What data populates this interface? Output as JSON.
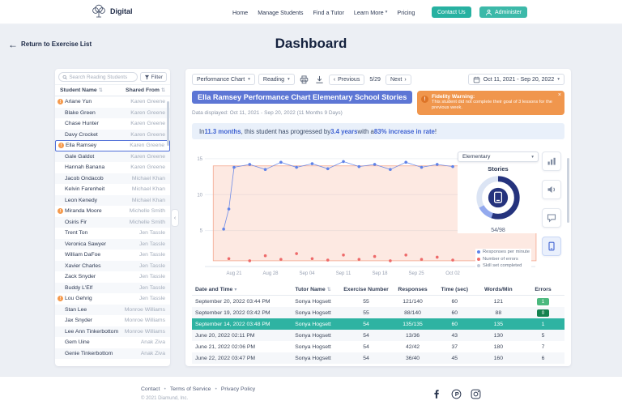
{
  "brand": {
    "name": "Digital"
  },
  "icons": {
    "back_arrow": "←",
    "chevron_down": "▾",
    "chevron_left": "‹",
    "chevron_right": "›",
    "sort": "⇅",
    "close": "×",
    "warning": "!",
    "bullet": "•"
  },
  "colors": {
    "teal": "#27b1a1",
    "accent_blue": "#3f62d2",
    "banner_blue": "#5d76d5",
    "warning_orange": "#f0964d",
    "highlight_teal": "#2eb3a2",
    "badge_green": "#4cb97e",
    "badge_dark_green": "#13814f",
    "series_blue": "#5f82e8",
    "series_red": "#ee6a6a",
    "band_pink": "#f8a68c"
  },
  "nav": {
    "items": [
      "Home",
      "Manage Students",
      "Find a Tutor",
      "Learn More",
      "Pricing"
    ],
    "dropdown_item": "Learn More",
    "contact_button": "Contact Us",
    "admin_button": "Administer"
  },
  "page": {
    "back_link": "Return to Exercise List",
    "title": "Dashboard"
  },
  "sidebar": {
    "search_placeholder": "Search Reading Students",
    "filter_label": "Filter",
    "columns": [
      "Student Name",
      "Shared From"
    ],
    "students": [
      {
        "name": "Arlane Yun",
        "shared_from": "Karen Greene",
        "warning": true,
        "selected": false
      },
      {
        "name": "Blake Green",
        "shared_from": "Karen Greene",
        "warning": false,
        "selected": false
      },
      {
        "name": "Chase Hunter",
        "shared_from": "Karen Greene",
        "warning": false,
        "selected": false
      },
      {
        "name": "Davy Crocket",
        "shared_from": "Karen Greene",
        "warning": false,
        "selected": false
      },
      {
        "name": "Ella Ramsey",
        "shared_from": "Karen Greene",
        "warning": true,
        "selected": true
      },
      {
        "name": "Gale Galdot",
        "shared_from": "Karen Greene",
        "warning": false,
        "selected": false
      },
      {
        "name": "Hannah Banana",
        "shared_from": "Karen Greene",
        "warning": false,
        "selected": false
      },
      {
        "name": "Jacob Ondacob",
        "shared_from": "Michael Khan",
        "warning": false,
        "selected": false
      },
      {
        "name": "Kelvin Farenheit",
        "shared_from": "Michael Khan",
        "warning": false,
        "selected": false
      },
      {
        "name": "Leon Kenedy",
        "shared_from": "Michael Khan",
        "warning": false,
        "selected": false
      },
      {
        "name": "Miranda Moore",
        "shared_from": "Michelle Smith",
        "warning": true,
        "selected": false
      },
      {
        "name": "Osiris Fir",
        "shared_from": "Michelle Smith",
        "warning": false,
        "selected": false
      },
      {
        "name": "Trent Ton",
        "shared_from": "Jen Tassle",
        "warning": false,
        "selected": false
      },
      {
        "name": "Veronica Sawyer",
        "shared_from": "Jen Tassle",
        "warning": false,
        "selected": false
      },
      {
        "name": "William DaFoe",
        "shared_from": "Jen Tassle",
        "warning": false,
        "selected": false
      },
      {
        "name": "Xavier Charles",
        "shared_from": "Jen Tassle",
        "warning": false,
        "selected": false
      },
      {
        "name": "Zack Snyder",
        "shared_from": "Jen Tassle",
        "warning": false,
        "selected": false
      },
      {
        "name": "Buddy L'Elf",
        "shared_from": "Jen Tassle",
        "warning": false,
        "selected": false
      },
      {
        "name": "Lou Gehrig",
        "shared_from": "Jen Tassle",
        "warning": true,
        "selected": false
      },
      {
        "name": "Stan Lee",
        "shared_from": "Monroe Williams",
        "warning": false,
        "selected": false
      },
      {
        "name": "Jax Snyder",
        "shared_from": "Monroe Williams",
        "warning": false,
        "selected": false
      },
      {
        "name": "Lee Ann Tinkerbottom",
        "shared_from": "Monroe Williams",
        "warning": false,
        "selected": false
      },
      {
        "name": "Gem Uine",
        "shared_from": "Anak Ziva",
        "warning": false,
        "selected": false
      },
      {
        "name": "Genie Tinkerbottom",
        "shared_from": "Anak Ziva",
        "warning": false,
        "selected": false
      }
    ]
  },
  "toolbar": {
    "chart_select": "Performance Chart",
    "subject_select": "Reading",
    "previous_label": "Previous",
    "next_label": "Next",
    "page_indicator": "5/29",
    "date_range": "Oct 11, 2021 - Sep 20, 2022"
  },
  "report": {
    "heading": "Ella Ramsey Performance Chart Elementary School Stories",
    "data_displayed": "Data displayed: Oct 11, 2021 - Sep 20, 2022 (11 Months 9 Days)",
    "warning": {
      "title": "Fidelity Warning:",
      "body": "This student did not complete their goal of 3 lessons for the previous week."
    },
    "summary_segments": [
      {
        "text": "In ",
        "bold": false
      },
      {
        "text": "11.3 months",
        "bold": true
      },
      {
        "text": ", this student has progressed by ",
        "bold": false
      },
      {
        "text": "3.4 years",
        "bold": true
      },
      {
        "text": " with a ",
        "bold": false
      },
      {
        "text": "83% increase in rate",
        "bold": true
      },
      {
        "text": "!",
        "bold": false
      }
    ]
  },
  "chart_data": {
    "type": "scatter",
    "title": "Ella Ramsey Performance Chart Elementary School Stories",
    "x_tick_labels": [
      "Aug 21",
      "Aug 28",
      "Sep 04",
      "Sep 11",
      "Sep 18",
      "Sep 25",
      "Oct 02"
    ],
    "x_tick_days": [
      3,
      10,
      17,
      24,
      31,
      38,
      45
    ],
    "x_domain_days": [
      0,
      61
    ],
    "ylim": [
      0,
      16
    ],
    "yticks": [
      5,
      10,
      15
    ],
    "grid": true,
    "legend_position": "bottom-right",
    "target_band": {
      "day_start": -1,
      "day_end": 61,
      "y_low": 0.8,
      "y_high": 14.0,
      "fill": "#f8a68c",
      "opacity": 0.25,
      "stroke": "#f3a78e"
    },
    "series": [
      {
        "name": "Responses per minute",
        "color": "#5f82e8",
        "type": "line+scatter",
        "points": [
          [
            1,
            5.2
          ],
          [
            2,
            8.0
          ],
          [
            3,
            13.8
          ],
          [
            6,
            14.2
          ],
          [
            9,
            13.5
          ],
          [
            12,
            14.5
          ],
          [
            15,
            13.8
          ],
          [
            18,
            14.3
          ],
          [
            21,
            13.6
          ],
          [
            24,
            14.6
          ],
          [
            27,
            13.9
          ],
          [
            30,
            14.2
          ],
          [
            33,
            13.5
          ],
          [
            36,
            14.5
          ],
          [
            39,
            13.8
          ],
          [
            42,
            14.2
          ],
          [
            45,
            13.9
          ]
        ]
      },
      {
        "name": "Number of errors",
        "color": "#ee6a6a",
        "type": "scatter",
        "points": [
          [
            2,
            1.1
          ],
          [
            6,
            0.8
          ],
          [
            9,
            1.5
          ],
          [
            12,
            1.0
          ],
          [
            15,
            1.8
          ],
          [
            18,
            1.1
          ],
          [
            21,
            0.9
          ],
          [
            24,
            1.6
          ],
          [
            27,
            1.0
          ],
          [
            30,
            1.4
          ],
          [
            33,
            0.8
          ],
          [
            36,
            1.6
          ],
          [
            39,
            1.0
          ],
          [
            42,
            1.3
          ],
          [
            45,
            0.9
          ]
        ]
      },
      {
        "name": "Skill set completed",
        "color": "#c3cbd8",
        "type": "scatter",
        "points": []
      }
    ]
  },
  "skill_panel": {
    "level_select": "Elementary",
    "label": "Stories",
    "progress": "54/98",
    "progress_value": 54,
    "progress_total": 98,
    "donut_primary": "#25337d",
    "donut_secondary": "#93a9ee",
    "donut_track": "#dbe4f4"
  },
  "chart_tools": [
    {
      "name": "bar-chart",
      "active": false
    },
    {
      "name": "audio",
      "active": false
    },
    {
      "name": "chat",
      "active": false
    },
    {
      "name": "book",
      "active": true
    }
  ],
  "session_table": {
    "columns": [
      "Date and Time",
      "Tutor Name",
      "Exercise Number",
      "Responses",
      "Time (sec)",
      "Words/Min",
      "Errors"
    ],
    "rows": [
      {
        "date": "September 20, 2022 03:44 PM",
        "tutor": "Sonya Hogsett",
        "exercise": "55",
        "responses": "121/140",
        "time": "60",
        "words": "121",
        "errors": "1",
        "errors_style": "green",
        "highlight": false
      },
      {
        "date": "September 19, 2022 03:42 PM",
        "tutor": "Sonya Hogsett",
        "exercise": "55",
        "responses": "88/140",
        "time": "60",
        "words": "88",
        "errors": "0",
        "errors_style": "dark-green",
        "highlight": false
      },
      {
        "date": "September 14, 2022 03:48 PM",
        "tutor": "Sonya Hogsett",
        "exercise": "54",
        "responses": "135/135",
        "time": "60",
        "words": "135",
        "errors": "1",
        "errors_style": "plain",
        "highlight": true
      },
      {
        "date": "June 20, 2022 02:11 PM",
        "tutor": "Sonya Hogsett",
        "exercise": "54",
        "responses": "13/36",
        "time": "43",
        "words": "130",
        "errors": "5",
        "errors_style": "plain",
        "highlight": false
      },
      {
        "date": "June 21, 2022 02:06 PM",
        "tutor": "Sonya Hogsett",
        "exercise": "54",
        "responses": "42/42",
        "time": "37",
        "words": "180",
        "errors": "7",
        "errors_style": "plain",
        "highlight": false
      },
      {
        "date": "June 22, 2022 03:47 PM",
        "tutor": "Sonya Hogsett",
        "exercise": "54",
        "responses": "36/40",
        "time": "45",
        "words": "160",
        "errors": "6",
        "errors_style": "plain",
        "highlight": false
      }
    ]
  },
  "footer": {
    "links": [
      "Contact",
      "Terms of Service",
      "Privacy Policy"
    ],
    "copyright": "© 2021 Diamund, Inc.",
    "social": [
      "facebook",
      "pinterest",
      "instagram"
    ]
  }
}
